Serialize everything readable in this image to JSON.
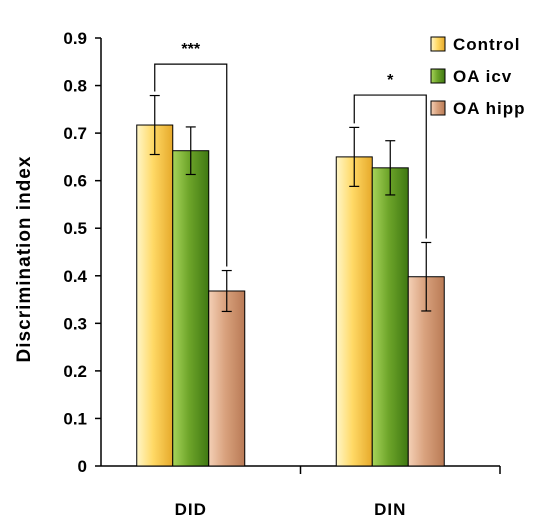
{
  "chart_data": {
    "type": "bar",
    "title": "",
    "xlabel": "",
    "ylabel": "Discrimination index",
    "ylim": [
      0,
      0.9
    ],
    "yticks": [
      "0",
      "0.1",
      "0.2",
      "0.3",
      "0.4",
      "0.5",
      "0.6",
      "0.7",
      "0.8",
      "0.9"
    ],
    "categories": [
      "DID",
      "DIN"
    ],
    "series": [
      {
        "name": "Control",
        "values": [
          0.717,
          0.65
        ],
        "errors": [
          0.062,
          0.062
        ],
        "color": "#ffd966",
        "color_light": "#fff6c8",
        "color_dark": "#e6a92a"
      },
      {
        "name": "OA icv",
        "values": [
          0.663,
          0.627
        ],
        "errors": [
          0.05,
          0.057
        ],
        "color": "#6ea52a",
        "color_light": "#a6d45a",
        "color_dark": "#3f7812"
      },
      {
        "name": "OA hipp",
        "values": [
          0.368,
          0.398
        ],
        "errors": [
          0.043,
          0.072
        ],
        "color": "#d9a27e",
        "color_light": "#f4d0b6",
        "color_dark": "#b97a55"
      }
    ],
    "significance": [
      {
        "category": "DID",
        "label": "***"
      },
      {
        "category": "DIN",
        "label": "*"
      }
    ],
    "legend_position": "top-right",
    "grid": false
  }
}
